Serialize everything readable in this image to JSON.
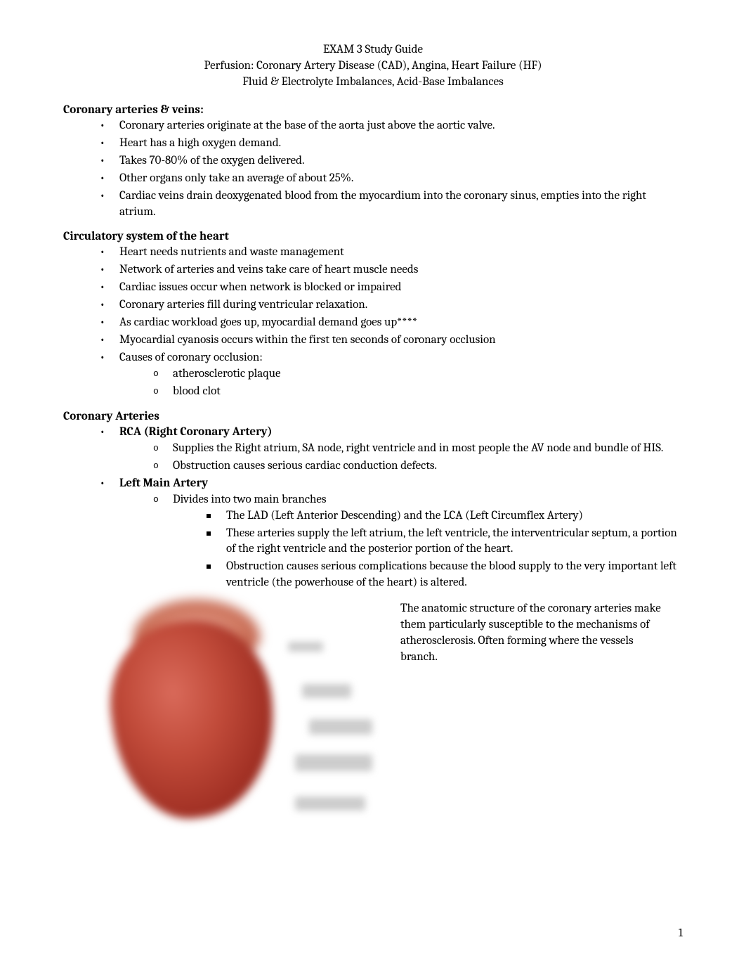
{
  "header": {
    "line1": "EXAM 3 Study Guide",
    "line2": "Perfusion: Coronary Artery Disease (CAD), Angina, Heart Failure (HF)",
    "line3": "Fluid & Electrolyte Imbalances, Acid-Base Imbalances"
  },
  "sections": {
    "s1": {
      "title": "Coronary arteries & veins:",
      "bullets": [
        "Coronary arteries originate at the base of the aorta just above the aortic valve.",
        "Heart has a high oxygen demand.",
        "Takes 70-80% of the oxygen delivered.",
        "Other organs only take an average of about 25%.",
        "Cardiac veins drain deoxygenated blood from the myocardium into the coronary sinus, empties into the right atrium."
      ]
    },
    "s2": {
      "title": "Circulatory system of the heart",
      "bullets": [
        "Heart needs nutrients and waste management",
        "Network of arteries and veins take care of heart muscle needs",
        "Cardiac issues occur when network is blocked or impaired",
        "Coronary arteries fill during ventricular relaxation.",
        "As cardiac workload goes up, myocardial demand goes up****",
        "Myocardial cyanosis occurs within the first ten seconds of coronary occlusion",
        "Causes of coronary occlusion:"
      ],
      "sub": [
        "atherosclerotic plaque",
        "blood clot"
      ]
    },
    "s3": {
      "title": "Coronary Arteries",
      "rca": {
        "label": "RCA (Right Coronary Artery)",
        "subs": [
          "Supplies the Right atrium, SA node, right ventricle and in most people the AV node and bundle of HIS.",
          "Obstruction causes serious cardiac conduction defects."
        ]
      },
      "lma": {
        "label": "Left Main Artery",
        "sub1": "Divides into two main branches",
        "sq": [
          "The LAD (Left Anterior Descending) and the LCA (Left Circumflex Artery)",
          "These arteries supply the left atrium, the left ventricle, the interventricular septum, a portion of the right ventricle and the posterior portion of the heart.",
          "Obstruction causes serious complications because the blood supply to the very important left ventricle (the powerhouse of the heart) is altered."
        ]
      }
    }
  },
  "sideText": "The anatomic structure of the coronary arteries make them particularly susceptible to the mechanisms of atherosclerosis. Often forming where the vessels branch.",
  "pageNumber": "1",
  "colors": {
    "text": "#000000",
    "background": "#ffffff",
    "heart_light": "#d96a5a",
    "heart_dark": "#7a1f16"
  }
}
